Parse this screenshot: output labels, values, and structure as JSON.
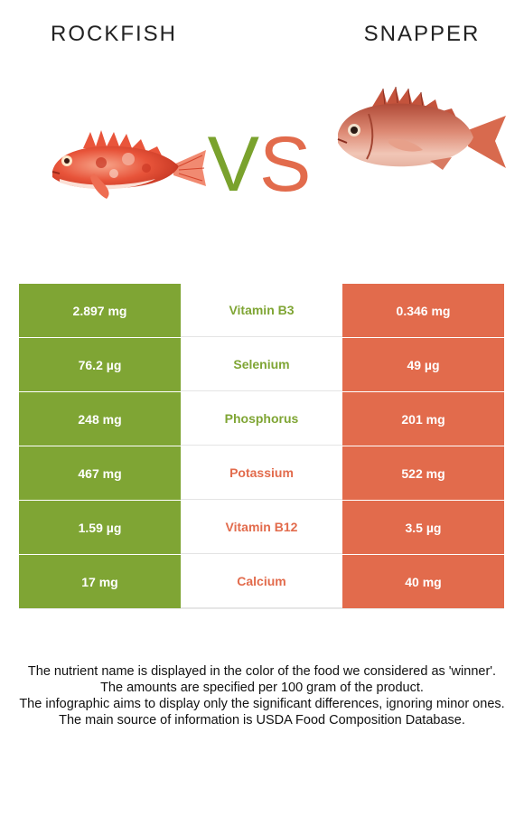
{
  "header": {
    "left_food": "ROCKFISH",
    "right_food": "SNAPPER",
    "vs_v": "V",
    "vs_s": "S"
  },
  "colors": {
    "left_food": "#7fa534",
    "right_food": "#e26b4c"
  },
  "images": {
    "left_fish": "rockfish-photo",
    "right_fish": "snapper-photo"
  },
  "nutrients": [
    {
      "name": "Vitamin B3",
      "left": "2.897 mg",
      "right": "0.346 mg",
      "winner": "left"
    },
    {
      "name": "Selenium",
      "left": "76.2 µg",
      "right": "49 µg",
      "winner": "left"
    },
    {
      "name": "Phosphorus",
      "left": "248 mg",
      "right": "201 mg",
      "winner": "left"
    },
    {
      "name": "Potassium",
      "left": "467 mg",
      "right": "522 mg",
      "winner": "right"
    },
    {
      "name": "Vitamin B12",
      "left": "1.59 µg",
      "right": "3.5 µg",
      "winner": "right"
    },
    {
      "name": "Calcium",
      "left": "17 mg",
      "right": "40 mg",
      "winner": "right"
    }
  ],
  "notes": [
    "The nutrient name is displayed in the color of the food we considered as 'winner'.",
    "The amounts are specified per 100 gram of the product.",
    "The infographic aims to display only the significant differences, ignoring minor ones.",
    "The main source of information is USDA Food Composition Database."
  ]
}
